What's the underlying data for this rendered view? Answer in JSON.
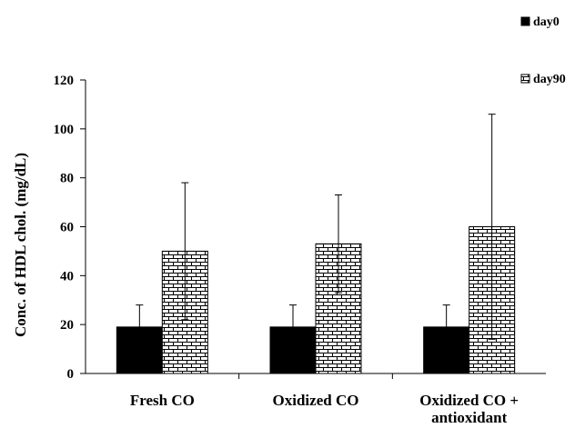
{
  "chart_data": {
    "type": "bar",
    "title": "",
    "xlabel": "",
    "ylabel": "Conc. of HDL chol. (mg/dL)",
    "ylim": [
      0,
      120
    ],
    "yticks": [
      0,
      20,
      40,
      60,
      80,
      100,
      120
    ],
    "grid": false,
    "legend_position": "top-right",
    "categories": [
      [
        "Fresh CO"
      ],
      [
        "Oxidized CO"
      ],
      [
        "Oxidized CO +",
        "antioxidant"
      ]
    ],
    "series": [
      {
        "name": "day0",
        "fill": "solid",
        "color": "#000000",
        "values": [
          19,
          19,
          19
        ],
        "error_upper": [
          28,
          28,
          28
        ]
      },
      {
        "name": "day90",
        "fill": "brick-pattern",
        "color": "#ffffff",
        "values": [
          50,
          53,
          60
        ],
        "error_upper": [
          78,
          73,
          106
        ],
        "error_lower": [
          22,
          33,
          14
        ]
      }
    ]
  }
}
